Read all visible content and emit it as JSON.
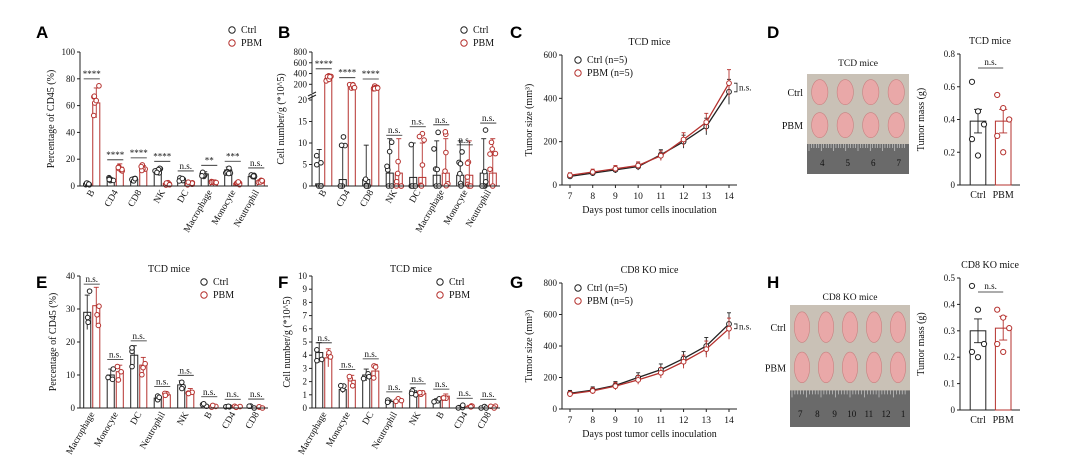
{
  "colors": {
    "ctrl": "#222222",
    "pbm": "#b5312e",
    "axis": "#222222",
    "photo_bg": "#c9c1b6",
    "ruler": "#6a6a6a"
  },
  "chart_data": [
    {
      "panel": "A",
      "type": "bar",
      "ylabel": "Percentage of CD45 (%)",
      "ylim": [
        0,
        100
      ],
      "yticks": [
        0,
        20,
        40,
        60,
        80,
        100
      ],
      "categories": [
        "B",
        "CD4",
        "CD8",
        "NK",
        "DC",
        "Macrophage",
        "Monocyte",
        "Neutrophil"
      ],
      "series": [
        {
          "name": "Ctrl",
          "values": [
            2,
            5,
            5,
            11,
            5,
            9,
            12,
            7
          ]
        },
        {
          "name": "PBM",
          "values": [
            62,
            14,
            13,
            2,
            2,
            3,
            2,
            3
          ]
        }
      ],
      "annotations": [
        "****",
        "****",
        "****",
        "****",
        "n.s.",
        "**",
        "***",
        "n.s."
      ],
      "legend": "top-right"
    },
    {
      "panel": "B",
      "type": "bar",
      "ylabel": "Cell number/g (*10^5)",
      "ylim": [
        0,
        800
      ],
      "yticks": [
        0,
        5,
        10,
        15,
        20,
        200,
        400,
        600,
        800
      ],
      "broken_axis": true,
      "categories": [
        "B",
        "CD4",
        "CD8",
        "NK",
        "DC",
        "Macrophage",
        "Monocyte",
        "Neutrophil"
      ],
      "series": [
        {
          "name": "Ctrl",
          "values": [
            0.5,
            1.5,
            1.5,
            3,
            2,
            2.5,
            2.5,
            3
          ]
        },
        {
          "name": "PBM",
          "values": [
            310,
            160,
            150,
            3,
            2,
            3,
            2.5,
            3
          ]
        }
      ],
      "annotations": [
        "****",
        "****",
        "****",
        "n.s.",
        "n.s.",
        "n.s.",
        "n.s.",
        "n.s."
      ],
      "legend": "top-right"
    },
    {
      "panel": "C",
      "type": "line",
      "title": "TCD mice",
      "xlabel": "Days post tumor cells inoculation",
      "ylabel": "Tumor size (mm³)",
      "x": [
        7,
        8,
        9,
        10,
        11,
        12,
        13,
        14
      ],
      "ylim": [
        0,
        600
      ],
      "yticks": [
        0,
        200,
        400,
        600
      ],
      "series": [
        {
          "name": "Ctrl (n=5)",
          "values": [
            40,
            55,
            70,
            85,
            140,
            200,
            270,
            430
          ]
        },
        {
          "name": "PBM (n=5)",
          "values": [
            45,
            60,
            75,
            90,
            135,
            210,
            290,
            470
          ]
        }
      ],
      "annotation": "n.s.",
      "legend": "top-left"
    },
    {
      "panel": "D",
      "type": "bar",
      "title": "TCD mice",
      "ylabel": "Tumor mass (g)",
      "ylim": [
        0,
        0.8
      ],
      "yticks": [
        0.0,
        0.2,
        0.4,
        0.6,
        0.8
      ],
      "categories": [
        "Ctrl",
        "PBM"
      ],
      "series": [
        {
          "name": "Tumor mass",
          "values": [
            0.39,
            0.39
          ]
        }
      ],
      "annotation": "n.s."
    },
    {
      "panel": "E",
      "type": "bar",
      "title": "TCD mice",
      "ylabel": "Percentage of CD45 (%)",
      "ylim": [
        0,
        40
      ],
      "yticks": [
        0,
        10,
        20,
        30,
        40
      ],
      "categories": [
        "Macrophage",
        "Monocyte",
        "DC",
        "Neutrophil",
        "NK",
        "B",
        "CD4",
        "CD8"
      ],
      "series": [
        {
          "name": "Ctrl",
          "values": [
            29,
            10,
            16,
            3,
            7,
            0.8,
            0.3,
            0.1
          ]
        },
        {
          "name": "PBM",
          "values": [
            31,
            11,
            13,
            4,
            5,
            0.6,
            0.3,
            0.1
          ]
        }
      ],
      "annotations": [
        "n.s.",
        "n.s.",
        "n.s.",
        "n.s.",
        "n.s.",
        "n.s.",
        "n.s.",
        "n.s."
      ],
      "legend": "top-right"
    },
    {
      "panel": "F",
      "type": "bar",
      "title": "TCD mice",
      "ylabel": "Cell number/g (*10^5)",
      "ylim": [
        0,
        10
      ],
      "yticks": [
        0,
        1,
        2,
        3,
        4,
        5,
        6,
        7,
        8,
        9,
        10
      ],
      "categories": [
        "Macrophage",
        "Monocyte",
        "DC",
        "Neutrophil",
        "NK",
        "B",
        "CD4",
        "CD8"
      ],
      "series": [
        {
          "name": "Ctrl",
          "values": [
            4.2,
            1.4,
            2.5,
            0.5,
            1.3,
            0.6,
            0.1,
            0.05
          ]
        },
        {
          "name": "PBM",
          "values": [
            3.8,
            2.1,
            2.8,
            0.6,
            1.1,
            0.9,
            0.1,
            0.05
          ]
        }
      ],
      "annotations": [
        "n.s.",
        "n.s.",
        "n.s.",
        "n.s.",
        "n.s.",
        "n.s.",
        "n.s.",
        "n.s."
      ],
      "legend": "top-right"
    },
    {
      "panel": "G",
      "type": "line",
      "title": "CD8 KO mice",
      "xlabel": "Days post tumor cells inoculation",
      "ylabel": "Tumor size (mm³)",
      "x": [
        7,
        8,
        9,
        10,
        11,
        12,
        13,
        14
      ],
      "ylim": [
        0,
        800
      ],
      "yticks": [
        0,
        200,
        400,
        600,
        800
      ],
      "series": [
        {
          "name": "Ctrl (n=5)",
          "values": [
            100,
            120,
            150,
            200,
            250,
            320,
            400,
            540
          ]
        },
        {
          "name": "PBM (n=5)",
          "values": [
            95,
            115,
            145,
            185,
            230,
            300,
            380,
            510
          ]
        }
      ],
      "annotation": "n.s.",
      "legend": "top-left"
    },
    {
      "panel": "H",
      "type": "bar",
      "title": "CD8 KO mice",
      "ylabel": "Tumor mass (g)",
      "ylim": [
        0,
        0.5
      ],
      "yticks": [
        0.0,
        0.1,
        0.2,
        0.3,
        0.4,
        0.5
      ],
      "categories": [
        "Ctrl",
        "PBM"
      ],
      "series": [
        {
          "name": "Tumor mass",
          "values": [
            0.3,
            0.31
          ]
        }
      ],
      "annotation": "n.s."
    }
  ],
  "photos": {
    "D": {
      "title": "TCD mice",
      "row_labels": [
        "Ctrl",
        "PBM"
      ],
      "ruler": [
        "4",
        "5",
        "6",
        "7"
      ]
    },
    "H": {
      "title": "CD8 KO mice",
      "row_labels": [
        "Ctrl",
        "PBM"
      ],
      "ruler": [
        "7",
        "8",
        "9",
        "10",
        "11",
        "12",
        "1"
      ]
    }
  }
}
